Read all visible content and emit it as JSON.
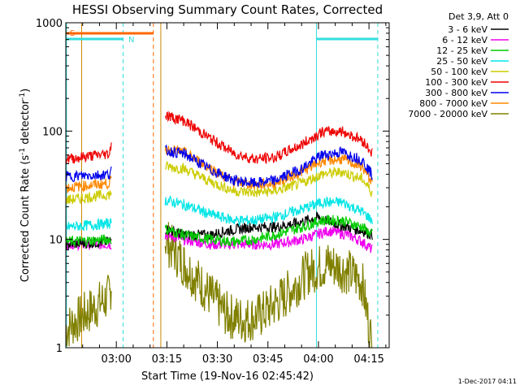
{
  "chart_data": {
    "type": "line",
    "title": "HESSI Observing Summary Count Rates, Corrected",
    "xlabel": "Start Time (19-Nov-16 02:45:42)",
    "ylabel_main": "Corrected Count Rate (s",
    "ylabel_sup1": "-1",
    "ylabel_mid": " detector",
    "ylabel_sup2": "-1",
    "ylabel_end": ")",
    "y_scale": "log",
    "ylim": [
      1,
      1000
    ],
    "xlim_minutes": [
      0,
      96
    ],
    "x_ticks": [
      {
        "minute": 15,
        "label": "03:00"
      },
      {
        "minute": 30,
        "label": "03:15"
      },
      {
        "minute": 45,
        "label": "03:30"
      },
      {
        "minute": 60,
        "label": "03:45"
      },
      {
        "minute": 75,
        "label": "04:00"
      },
      {
        "minute": 90,
        "label": "04:15"
      }
    ],
    "y_ticks": [
      {
        "value": 1,
        "label": "1"
      },
      {
        "value": 10,
        "label": "10"
      },
      {
        "value": 100,
        "label": "100"
      },
      {
        "value": 1000,
        "label": "1000"
      }
    ],
    "legend_title": "Det 3,9, Att 0",
    "series": [
      {
        "name": "3 - 6 keV",
        "color": "#000000",
        "points": [
          [
            0,
            9
          ],
          [
            13,
            9.5
          ],
          [
            13.5,
            10
          ],
          [
            28,
            null
          ],
          [
            29.5,
            12.5
          ],
          [
            35,
            11
          ],
          [
            43,
            11
          ],
          [
            48,
            12
          ],
          [
            55,
            13
          ],
          [
            62,
            13
          ],
          [
            68,
            14
          ],
          [
            75,
            16
          ],
          [
            80,
            14
          ],
          [
            88,
            12
          ],
          [
            91,
            11
          ]
        ]
      },
      {
        "name": "6 - 12 keV",
        "color": "#ee00ee",
        "points": [
          [
            0,
            9
          ],
          [
            13,
            9
          ],
          [
            13.5,
            9
          ],
          [
            28,
            null
          ],
          [
            29.5,
            11
          ],
          [
            35,
            10
          ],
          [
            43,
            9
          ],
          [
            48,
            9
          ],
          [
            55,
            9
          ],
          [
            62,
            9
          ],
          [
            70,
            10
          ],
          [
            78,
            12
          ],
          [
            84,
            11
          ],
          [
            88,
            9.5
          ],
          [
            91,
            8
          ]
        ]
      },
      {
        "name": "12 - 25 keV",
        "color": "#00cc00",
        "points": [
          [
            0,
            9.5
          ],
          [
            13,
            10
          ],
          [
            13.5,
            10
          ],
          [
            28,
            null
          ],
          [
            29.5,
            12.5
          ],
          [
            35,
            11
          ],
          [
            43,
            10
          ],
          [
            50,
            9.5
          ],
          [
            56,
            10
          ],
          [
            62,
            11
          ],
          [
            70,
            13
          ],
          [
            76,
            15
          ],
          [
            82,
            15
          ],
          [
            88,
            13
          ],
          [
            91,
            11
          ]
        ]
      },
      {
        "name": "25 - 50 keV",
        "color": "#00e5e5",
        "points": [
          [
            0,
            13
          ],
          [
            13,
            14
          ],
          [
            13.5,
            14
          ],
          [
            28,
            null
          ],
          [
            29.5,
            23
          ],
          [
            35,
            21
          ],
          [
            43,
            17
          ],
          [
            50,
            15
          ],
          [
            56,
            15
          ],
          [
            62,
            16
          ],
          [
            70,
            19
          ],
          [
            76,
            22
          ],
          [
            82,
            22
          ],
          [
            88,
            18
          ],
          [
            91,
            15
          ]
        ]
      },
      {
        "name": "50 - 100 keV",
        "color": "#cccc00",
        "points": [
          [
            0,
            23
          ],
          [
            13,
            26
          ],
          [
            13.5,
            27
          ],
          [
            28,
            null
          ],
          [
            29.5,
            47
          ],
          [
            35,
            45
          ],
          [
            43,
            34
          ],
          [
            50,
            28
          ],
          [
            56,
            27
          ],
          [
            62,
            28
          ],
          [
            70,
            33
          ],
          [
            76,
            40
          ],
          [
            82,
            42
          ],
          [
            88,
            36
          ],
          [
            91,
            27
          ]
        ]
      },
      {
        "name": "100 - 300 keV",
        "color": "#ee0000",
        "points": [
          [
            0,
            55
          ],
          [
            13,
            62
          ],
          [
            13.5,
            80
          ],
          [
            28,
            null
          ],
          [
            29.5,
            140
          ],
          [
            35,
            125
          ],
          [
            43,
            85
          ],
          [
            50,
            62
          ],
          [
            56,
            55
          ],
          [
            62,
            57
          ],
          [
            70,
            75
          ],
          [
            76,
            98
          ],
          [
            82,
            100
          ],
          [
            88,
            82
          ],
          [
            91,
            63
          ]
        ]
      },
      {
        "name": "300 - 800 keV",
        "color": "#0000ee",
        "points": [
          [
            0,
            38
          ],
          [
            13,
            40
          ],
          [
            13.5,
            44
          ],
          [
            28,
            null
          ],
          [
            29.5,
            66
          ],
          [
            35,
            62
          ],
          [
            43,
            44
          ],
          [
            50,
            35
          ],
          [
            56,
            33
          ],
          [
            62,
            35
          ],
          [
            70,
            45
          ],
          [
            76,
            60
          ],
          [
            82,
            64
          ],
          [
            88,
            54
          ],
          [
            91,
            39
          ]
        ]
      },
      {
        "name": "800 - 7000 keV",
        "color": "#ff8800",
        "points": [
          [
            0,
            30
          ],
          [
            13,
            33
          ],
          [
            13.5,
            35
          ],
          [
            28,
            null
          ],
          [
            29.5,
            68
          ],
          [
            35,
            64
          ],
          [
            43,
            45
          ],
          [
            50,
            34
          ],
          [
            56,
            32
          ],
          [
            62,
            33
          ],
          [
            70,
            42
          ],
          [
            76,
            53
          ],
          [
            82,
            55
          ],
          [
            88,
            47
          ],
          [
            91,
            33
          ]
        ]
      },
      {
        "name": "7000 - 20000 keV",
        "color": "#808000",
        "points": [
          [
            0,
            1.5
          ],
          [
            13,
            3
          ],
          [
            13.5,
            4
          ],
          [
            28,
            null
          ],
          [
            29.5,
            10
          ],
          [
            35,
            6
          ],
          [
            43,
            3
          ],
          [
            48,
            2
          ],
          [
            53,
            1.8
          ],
          [
            58,
            2
          ],
          [
            65,
            3
          ],
          [
            72,
            5
          ],
          [
            78,
            6
          ],
          [
            84,
            5
          ],
          [
            88,
            4
          ],
          [
            91,
            1
          ]
        ]
      }
    ],
    "flags": [
      {
        "label": "S",
        "color": "#ff6600"
      },
      {
        "label": "N",
        "color": "#33dddd"
      }
    ],
    "timestamp": "1-Dec-2017 04:11"
  }
}
